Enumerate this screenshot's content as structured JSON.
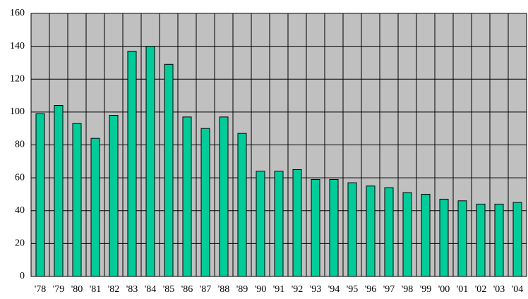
{
  "chart_data": {
    "type": "bar",
    "categories": [
      "'78",
      "'79",
      "'80",
      "'81",
      "'82",
      "'83",
      "'84",
      "'85",
      "'86",
      "'87",
      "'88",
      "'89",
      "'90",
      "'91",
      "'92",
      "'93",
      "'94",
      "'95",
      "'96",
      "'97",
      "'98",
      "'99",
      "'00",
      "'01",
      "'02",
      "'03",
      "'04"
    ],
    "values": [
      99,
      104,
      93,
      84,
      98,
      137,
      140,
      129,
      97,
      90,
      97,
      87,
      64,
      64,
      65,
      59,
      59,
      57,
      55,
      54,
      51,
      50,
      47,
      46,
      44,
      44,
      45
    ],
    "color": "#00cc99",
    "background": "#c0c0c0",
    "ylim": [
      0,
      160
    ],
    "yticks": [
      0,
      20,
      40,
      60,
      80,
      100,
      120,
      140,
      160
    ],
    "grid": true
  }
}
